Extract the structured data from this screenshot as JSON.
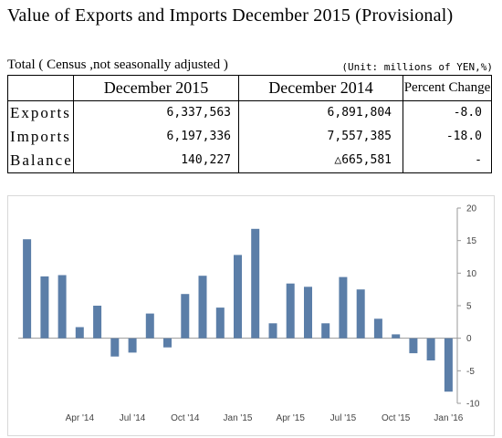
{
  "title": "Value of Exports and Imports December 2015 (Provisional)",
  "caption": "Total ( Census ,not seasonally adjusted )",
  "unit": "(Unit: millions of YEN,%)",
  "table": {
    "headers": [
      "",
      "December 2015",
      "December 2014",
      "Percent Change"
    ],
    "rows": [
      {
        "label": "Exports",
        "dec2015": "6,337,563",
        "dec2014": "6,891,804",
        "change": "-8.0"
      },
      {
        "label": "Imports",
        "dec2015": "6,197,336",
        "dec2014": "7,557,385",
        "change": "-18.0"
      },
      {
        "label": "Balance",
        "dec2015": "140,227",
        "dec2014": "△665,581",
        "change": "-"
      }
    ]
  },
  "chart_data": {
    "type": "bar",
    "title": "",
    "xlabel": "",
    "ylabel": "",
    "ylim": [
      -10,
      20
    ],
    "yticks": [
      20,
      15,
      10,
      5,
      0,
      -5,
      -10
    ],
    "grid": false,
    "bar_color": "#5b7ea8",
    "categories": [
      "Jan '14",
      "Feb '14",
      "Mar '14",
      "Apr '14",
      "May '14",
      "Jun '14",
      "Jul '14",
      "Aug '14",
      "Sep '14",
      "Oct '14",
      "Nov '14",
      "Dec '14",
      "Jan '15",
      "Feb '15",
      "Mar '15",
      "Apr '15",
      "May '15",
      "Jun '15",
      "Jul '15",
      "Aug '15",
      "Sep '15",
      "Oct '15",
      "Nov '15",
      "Dec '15",
      "Jan '16"
    ],
    "values": [
      15.2,
      9.5,
      9.7,
      1.7,
      5.0,
      -2.8,
      -2.2,
      3.8,
      -1.4,
      6.8,
      9.6,
      4.7,
      12.8,
      16.8,
      2.3,
      8.4,
      7.9,
      2.3,
      9.4,
      7.5,
      3.0,
      0.6,
      -2.3,
      -3.4,
      -8.2
    ],
    "xtick_labels": [
      {
        "index": 3,
        "label": "Apr '14"
      },
      {
        "index": 6,
        "label": "Jul '14"
      },
      {
        "index": 9,
        "label": "Oct '14"
      },
      {
        "index": 12,
        "label": "Jan '15"
      },
      {
        "index": 15,
        "label": "Apr '15"
      },
      {
        "index": 18,
        "label": "Jul '15"
      },
      {
        "index": 21,
        "label": "Oct '15"
      },
      {
        "index": 24,
        "label": "Jan '16"
      }
    ]
  }
}
